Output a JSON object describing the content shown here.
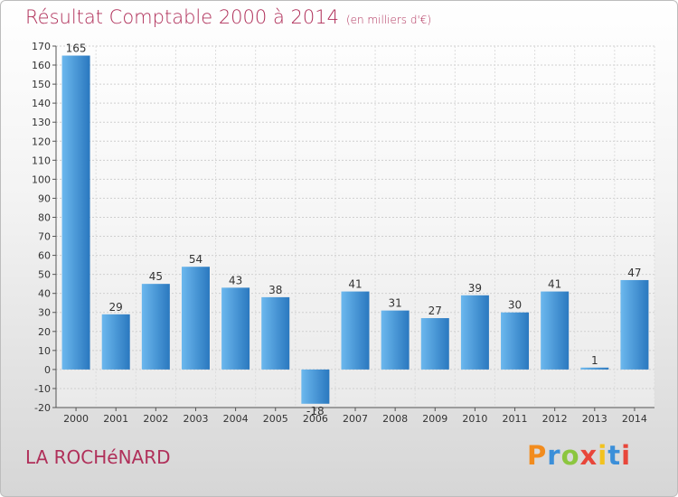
{
  "header": {
    "title": "Résultat Comptable 2000 à 2014",
    "unit": "(en milliers d'€)"
  },
  "footer": {
    "commune": "LA ROCHéNARD",
    "logo_letters": [
      "P",
      "r",
      "o",
      "x",
      "i",
      "t",
      "i"
    ],
    "logo_colors": [
      "#f28c1e",
      "#3b8fd9",
      "#8cc63f",
      "#e8463a",
      "#f2c21e",
      "#3b8fd9",
      "#e8463a"
    ]
  },
  "colors": {
    "bar_light": "#6cb8ee",
    "bar_dark": "#2a78bf",
    "title": "#b0305a"
  },
  "chart_data": {
    "type": "bar",
    "title": "Résultat Comptable 2000 à 2014",
    "subtitle": "(en milliers d'€)",
    "categories": [
      "2000",
      "2001",
      "2002",
      "2003",
      "2004",
      "2005",
      "2006",
      "2007",
      "2008",
      "2009",
      "2010",
      "2011",
      "2012",
      "2013",
      "2014"
    ],
    "values": [
      165,
      29,
      45,
      54,
      43,
      38,
      -18,
      41,
      31,
      27,
      39,
      30,
      41,
      1,
      47
    ],
    "ylim": [
      -20,
      170
    ],
    "yticks": [
      -20,
      -10,
      0,
      10,
      20,
      30,
      40,
      50,
      60,
      70,
      80,
      90,
      100,
      110,
      120,
      130,
      140,
      150,
      160,
      170
    ],
    "grid": true
  }
}
